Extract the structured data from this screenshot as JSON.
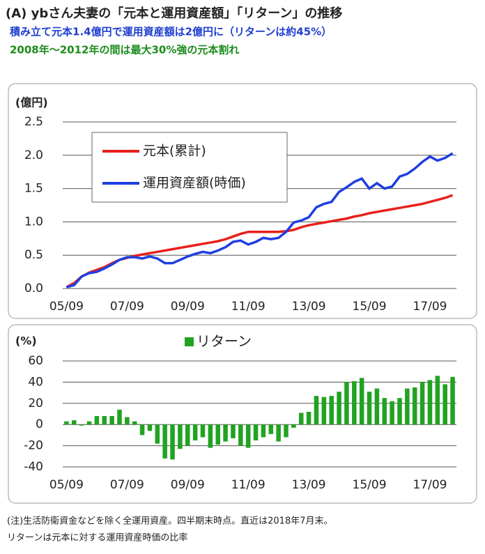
{
  "header": {
    "title": "(A) ybさん夫妻の「元本と運用資産額」「リターン」の推移",
    "subtitles": [
      "積み立て元本1.4億円で運用資産額は2億円に（リターンは約45%）",
      "2008年～2012年の間は最大30%強の元本割れ"
    ]
  },
  "notes": [
    "(注)生活防衛資金などを除く全運用資産。四半期末時点。直近は2018年7月末。",
    "リターンは元本に対する運用資産時価の比率"
  ],
  "chart_data": [
    {
      "type": "line",
      "y_label": "(億円)",
      "categories": [
        "05/09",
        null,
        null,
        null,
        null,
        null,
        null,
        null,
        "07/09",
        null,
        null,
        null,
        null,
        null,
        null,
        null,
        "09/09",
        null,
        null,
        null,
        null,
        null,
        null,
        null,
        "11/09",
        null,
        null,
        null,
        null,
        null,
        null,
        null,
        "13/09",
        null,
        null,
        null,
        null,
        null,
        null,
        null,
        "15/09",
        null,
        null,
        null,
        null,
        null,
        null,
        null,
        "17/09",
        null,
        null,
        null
      ],
      "series": [
        {
          "name": "元本(累計)",
          "color": "#e8201c",
          "values": [
            0.02,
            0.08,
            0.18,
            0.24,
            0.28,
            0.32,
            0.38,
            0.43,
            0.46,
            0.49,
            0.51,
            0.53,
            0.55,
            0.57,
            0.59,
            0.61,
            0.63,
            0.65,
            0.67,
            0.69,
            0.71,
            0.74,
            0.78,
            0.82,
            0.85,
            0.85,
            0.85,
            0.85,
            0.85,
            0.86,
            0.88,
            0.92,
            0.95,
            0.97,
            0.99,
            1.01,
            1.03,
            1.05,
            1.08,
            1.1,
            1.13,
            1.15,
            1.17,
            1.19,
            1.21,
            1.23,
            1.25,
            1.27,
            1.3,
            1.33,
            1.36,
            1.4
          ]
        },
        {
          "name": "運用資産額(時価)",
          "color": "#1f3fe0",
          "values": [
            0.02,
            0.05,
            0.18,
            0.23,
            0.25,
            0.3,
            0.36,
            0.43,
            0.47,
            0.47,
            0.45,
            0.48,
            0.45,
            0.38,
            0.38,
            0.43,
            0.48,
            0.52,
            0.55,
            0.53,
            0.57,
            0.62,
            0.7,
            0.72,
            0.66,
            0.7,
            0.76,
            0.74,
            0.76,
            0.85,
            0.99,
            1.02,
            1.07,
            1.22,
            1.27,
            1.3,
            1.45,
            1.52,
            1.6,
            1.65,
            1.5,
            1.58,
            1.5,
            1.53,
            1.68,
            1.72,
            1.8,
            1.9,
            1.98,
            1.92,
            1.96,
            2.03
          ]
        }
      ],
      "ylim": [
        0,
        2.5
      ],
      "yticks": [
        {
          "value": 0,
          "label": "0.0"
        },
        0.5,
        {
          "value": 1,
          "label": "1.0"
        },
        1.5,
        {
          "value": 2,
          "label": "2.0"
        },
        2.5
      ],
      "grid": true,
      "legend": "top-left"
    },
    {
      "type": "bar",
      "y_label": "(%)",
      "categories": [
        "05/09",
        null,
        null,
        null,
        null,
        null,
        null,
        null,
        "07/09",
        null,
        null,
        null,
        null,
        null,
        null,
        null,
        "09/09",
        null,
        null,
        null,
        null,
        null,
        null,
        null,
        "11/09",
        null,
        null,
        null,
        null,
        null,
        null,
        null,
        "13/09",
        null,
        null,
        null,
        null,
        null,
        null,
        null,
        "15/09",
        null,
        null,
        null,
        null,
        null,
        null,
        null,
        "17/09",
        null,
        null,
        null
      ],
      "series": [
        {
          "name": "リターン",
          "color": "#21a321",
          "values": [
            3,
            4,
            -1,
            3,
            8,
            8,
            8,
            14,
            7,
            3,
            -10,
            -6,
            -18,
            -32,
            -33,
            -23,
            -20,
            -15,
            -12,
            -22,
            -19,
            -16,
            -13,
            -20,
            -22,
            -15,
            -12,
            -9,
            -16,
            -12,
            -3,
            11,
            12,
            27,
            26,
            27,
            31,
            40,
            41,
            44,
            31,
            34,
            25,
            22,
            25,
            34,
            35,
            40,
            42,
            46,
            38,
            45
          ]
        }
      ],
      "ylim": [
        -40,
        60
      ],
      "yticks": [
        -40,
        -20,
        0,
        20,
        40,
        60
      ],
      "grid": true,
      "legend": "top-center"
    }
  ]
}
